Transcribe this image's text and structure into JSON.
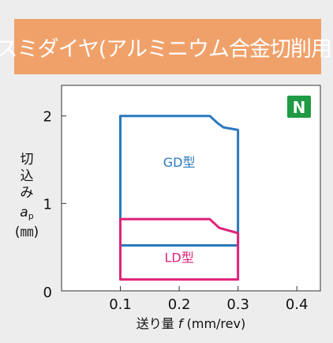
{
  "header": {
    "title": "スミダイヤ(アルミニウム合金切削用)",
    "background": "#f0a16a",
    "text_color": "#ffffff"
  },
  "chart_data": {
    "type": "area",
    "badge": {
      "text": "N",
      "color": "#1f9a45"
    },
    "x_axis": {
      "ticks": [
        0.1,
        0.2,
        0.3,
        0.4
      ],
      "tick_labels": [
        "0.1",
        "0.2",
        "0.3",
        "0.4"
      ],
      "label_parts": [
        "送り量 ",
        "f",
        " (mm/rev)"
      ],
      "range": [
        0.0,
        0.44
      ]
    },
    "y_axis": {
      "ticks": [
        0,
        1,
        2
      ],
      "tick_labels": [
        "0",
        "1",
        "2"
      ],
      "label_lines": [
        "切",
        "込",
        "み"
      ],
      "label_symbol": "a",
      "label_subscript": "p",
      "label_unit": "(㎜)",
      "range": [
        0.0,
        2.35
      ]
    },
    "grid": false,
    "legend": "none",
    "series": [
      {
        "name": "GD型",
        "color": "#2a79bf",
        "points": [
          {
            "x": 0.1,
            "y": 0.52
          },
          {
            "x": 0.1,
            "y": 2.0
          },
          {
            "x": 0.252,
            "y": 2.0
          },
          {
            "x": 0.265,
            "y": 1.92
          },
          {
            "x": 0.275,
            "y": 1.87
          },
          {
            "x": 0.3,
            "y": 1.84
          },
          {
            "x": 0.3,
            "y": 0.52
          }
        ]
      },
      {
        "name": "LD型",
        "color": "#e0247a",
        "points": [
          {
            "x": 0.1,
            "y": 0.13
          },
          {
            "x": 0.1,
            "y": 0.82
          },
          {
            "x": 0.252,
            "y": 0.82
          },
          {
            "x": 0.268,
            "y": 0.72
          },
          {
            "x": 0.3,
            "y": 0.66
          },
          {
            "x": 0.3,
            "y": 0.13
          }
        ]
      }
    ]
  }
}
